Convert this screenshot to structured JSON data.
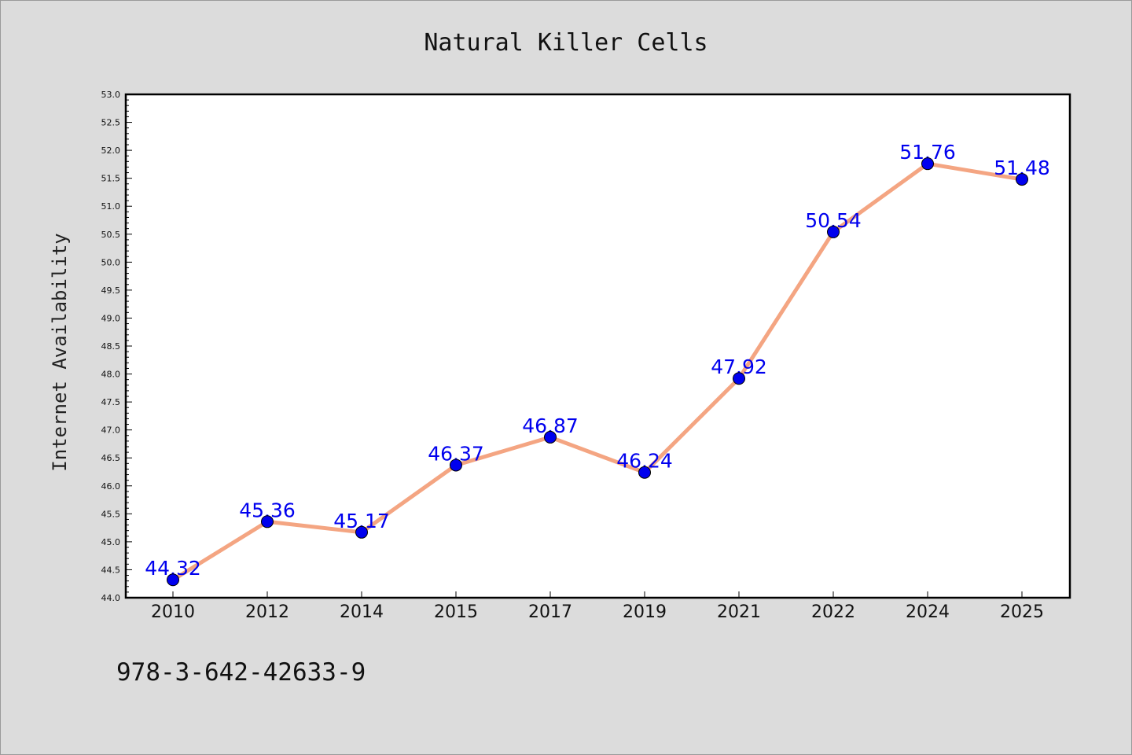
{
  "chart_data": {
    "type": "line",
    "title": "Natural Killer Cells",
    "xlabel": "",
    "ylabel": "Internet Availability",
    "categories": [
      "2010",
      "2012",
      "2014",
      "2015",
      "2017",
      "2019",
      "2021",
      "2022",
      "2024",
      "2025"
    ],
    "series": [
      {
        "values": [
          44.32,
          45.36,
          45.17,
          46.37,
          46.87,
          46.24,
          47.92,
          50.54,
          51.76,
          51.48
        ],
        "labels": [
          "44.32",
          "45.36",
          "45.17",
          "46.37",
          "46.87",
          "46.24",
          "47.92",
          "50.54",
          "51.76",
          "51.48"
        ],
        "line_color": "#f4a582",
        "marker_color": "#0000ee",
        "label_color": "#0000ee"
      }
    ],
    "ylim": [
      44.0,
      53.0
    ],
    "yticks": [
      "44.0",
      "44.5",
      "45.0",
      "45.5",
      "46.0",
      "46.5",
      "47.0",
      "47.5",
      "48.0",
      "48.5",
      "49.0",
      "49.5",
      "50.0",
      "50.5",
      "51.0",
      "51.5",
      "52.0",
      "52.5",
      "53.0"
    ],
    "grid": false,
    "legend": "none"
  },
  "footer": {
    "isbn": "978-3-642-42633-9"
  },
  "colors": {
    "background": "#dcdcdc",
    "plot_background": "#ffffff",
    "axis": "#000000"
  }
}
